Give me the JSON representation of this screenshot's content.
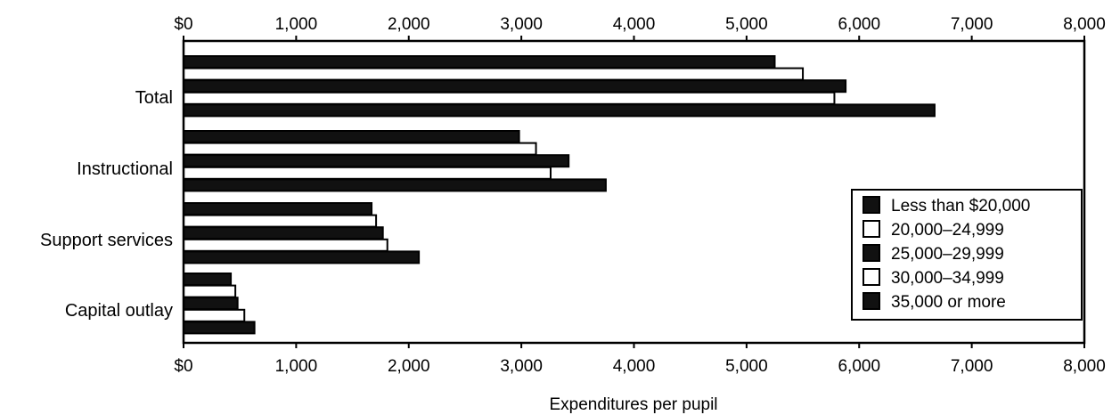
{
  "chart_data": {
    "type": "bar",
    "orientation": "horizontal",
    "xlabel": "Expenditures per pupil",
    "xlim": [
      0,
      8000
    ],
    "x_ticks": [
      0,
      1000,
      2000,
      3000,
      4000,
      5000,
      6000,
      7000,
      8000
    ],
    "x_tick_labels": [
      "$0",
      "1,000",
      "2,000",
      "3,000",
      "4,000",
      "5,000",
      "6,000",
      "7,000",
      "8,000"
    ],
    "categories": [
      "Total",
      "Instructional",
      "Support services",
      "Capital outlay"
    ],
    "series": [
      {
        "name": "Less than $20,000",
        "color": "#111111",
        "values": [
          5250,
          2980,
          1670,
          420
        ]
      },
      {
        "name": "20,000–24,999",
        "color": "#ffffff",
        "values": [
          5500,
          3130,
          1710,
          460
        ]
      },
      {
        "name": "25,000–29,999",
        "color": "#111111",
        "values": [
          5880,
          3420,
          1770,
          480
        ]
      },
      {
        "name": "30,000–34,999",
        "color": "#ffffff",
        "values": [
          5780,
          3260,
          1810,
          540
        ]
      },
      {
        "name": "35,000 or more",
        "color": "#111111",
        "values": [
          6670,
          3750,
          2090,
          630
        ]
      }
    ],
    "legend_position": "right",
    "grid": false
  }
}
